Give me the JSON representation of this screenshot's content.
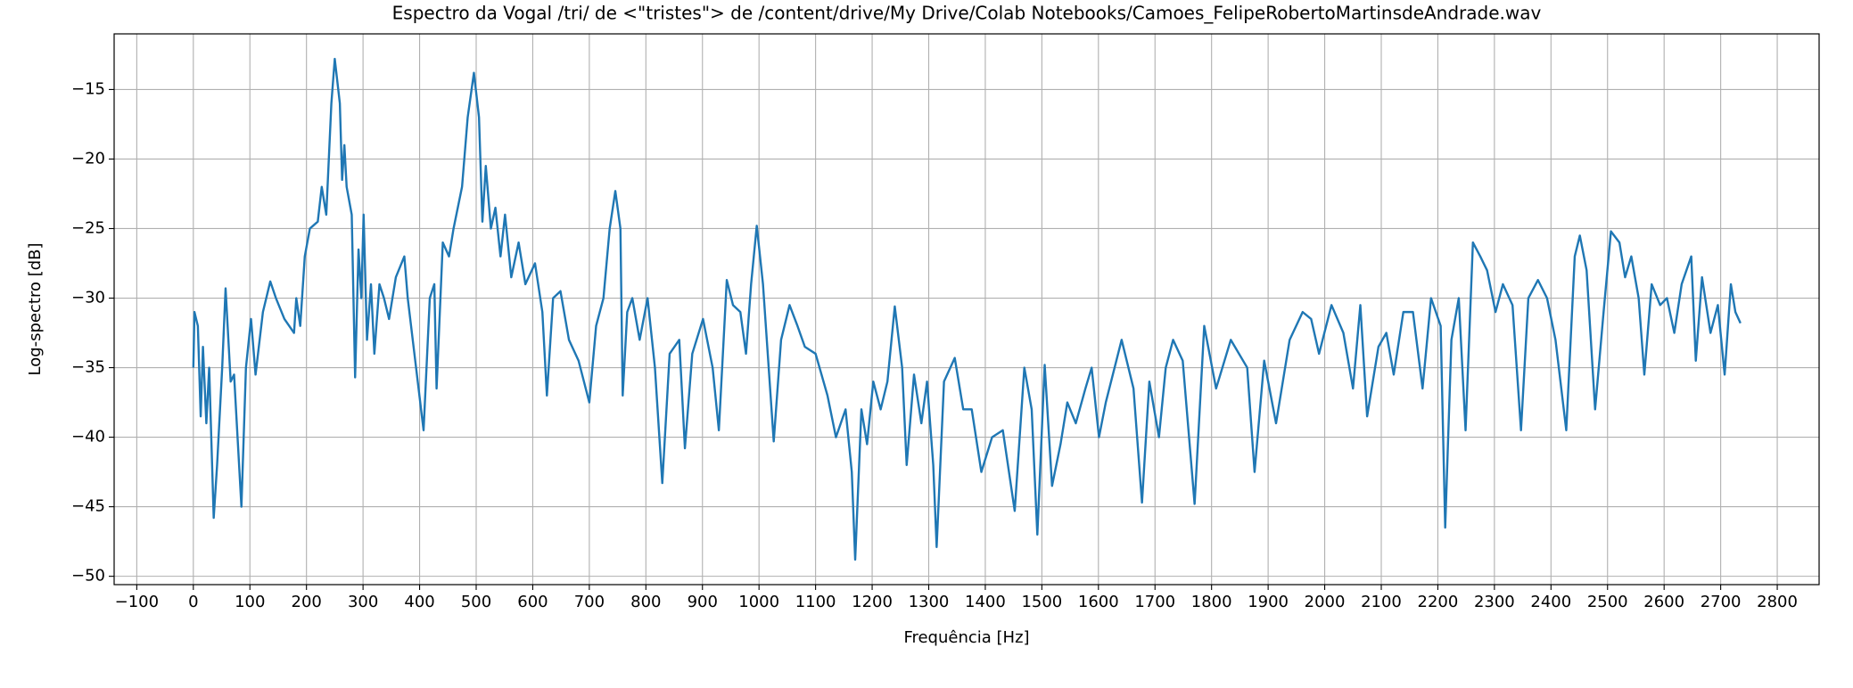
{
  "chart_data": {
    "type": "line",
    "title": "Espectro da Vogal /tri/ de <\"tristes\"> de /content/drive/My Drive/Colab Notebooks/Camoes_FelipeRobertoMartinsdeAndrade.wav",
    "x_label": "Frequência [Hz]",
    "y_label": "Log-spectro [dB]",
    "color": "#1f77b4",
    "grid": true,
    "xlim": [
      -140,
      2874
    ],
    "ylim": [
      -50.6,
      -11.0
    ],
    "xticks": [
      {
        "value": -100,
        "label": "−100"
      },
      0,
      100,
      200,
      300,
      400,
      500,
      600,
      700,
      800,
      900,
      1000,
      1100,
      1200,
      1300,
      1400,
      1500,
      1600,
      1700,
      1800,
      1900,
      2000,
      2100,
      2200,
      2300,
      2400,
      2500,
      2600,
      2700,
      2800
    ],
    "yticks": [
      {
        "value": -50,
        "label": "−50"
      },
      {
        "value": -45,
        "label": "−45"
      },
      {
        "value": -40,
        "label": "−40"
      },
      {
        "value": -35,
        "label": "−35"
      },
      {
        "value": -30,
        "label": "−30"
      },
      {
        "value": -25,
        "label": "−25"
      },
      {
        "value": -20,
        "label": "−20"
      },
      {
        "value": -15,
        "label": "−15"
      }
    ],
    "x": [
      0,
      2,
      8,
      13,
      17,
      23,
      28,
      36,
      42,
      51,
      57,
      66,
      72,
      85,
      93,
      102,
      110,
      123,
      136,
      146,
      161,
      178,
      182,
      189,
      197,
      206,
      220,
      227,
      235,
      244,
      250,
      259,
      263,
      267,
      271,
      280,
      286,
      292,
      297,
      301,
      307,
      314,
      320,
      329,
      337,
      346,
      358,
      373,
      379,
      407,
      418,
      426,
      430,
      441,
      452,
      460,
      475,
      485,
      496,
      505,
      511,
      517,
      526,
      534,
      543,
      551,
      562,
      575,
      587,
      604,
      617,
      625,
      636,
      649,
      664,
      681,
      700,
      712,
      725,
      736,
      746,
      755,
      759,
      767,
      776,
      789,
      803,
      816,
      829,
      842,
      859,
      869,
      882,
      901,
      918,
      929,
      943,
      954,
      967,
      977,
      986,
      996,
      1007,
      1026,
      1039,
      1054,
      1068,
      1081,
      1100,
      1121,
      1136,
      1153,
      1164,
      1170,
      1181,
      1191,
      1202,
      1215,
      1227,
      1240,
      1253,
      1261,
      1274,
      1287,
      1297,
      1308,
      1314,
      1327,
      1346,
      1361,
      1376,
      1393,
      1412,
      1431,
      1452,
      1469,
      1482,
      1492,
      1505,
      1518,
      1533,
      1545,
      1560,
      1577,
      1588,
      1601,
      1613,
      1641,
      1662,
      1677,
      1690,
      1707,
      1719,
      1732,
      1749,
      1770,
      1787,
      1808,
      1834,
      1863,
      1876,
      1893,
      1914,
      1938,
      1961,
      1976,
      1990,
      2012,
      2033,
      2050,
      2063,
      2075,
      2095,
      2109,
      2122,
      2139,
      2156,
      2173,
      2188,
      2205,
      2213,
      2224,
      2237,
      2249,
      2262,
      2275,
      2287,
      2302,
      2315,
      2332,
      2347,
      2360,
      2377,
      2393,
      2408,
      2427,
      2442,
      2451,
      2463,
      2478,
      2493,
      2506,
      2521,
      2531,
      2542,
      2555,
      2565,
      2578,
      2593,
      2605,
      2618,
      2631,
      2648,
      2656,
      2667,
      2682,
      2695,
      2707,
      2718,
      2726,
      2735
    ],
    "values": [
      -35,
      -31,
      -32,
      -38.5,
      -33.5,
      -39,
      -35,
      -45.8,
      -42,
      -35,
      -29.3,
      -36,
      -35.5,
      -45,
      -35,
      -31.5,
      -35.5,
      -31,
      -28.8,
      -30,
      -31.5,
      -32.5,
      -30,
      -32,
      -27,
      -25,
      -24.5,
      -22,
      -24,
      -16,
      -12.8,
      -16,
      -21.5,
      -19,
      -22,
      -24,
      -35.7,
      -26.5,
      -30,
      -24,
      -33,
      -29,
      -34,
      -29,
      -30,
      -31.5,
      -28.5,
      -27,
      -30,
      -39.5,
      -30,
      -29,
      -36.5,
      -26,
      -27,
      -25,
      -22,
      -17,
      -13.8,
      -17,
      -24.5,
      -20.5,
      -25,
      -23.5,
      -27,
      -24,
      -28.5,
      -26,
      -29,
      -27.5,
      -31,
      -37,
      -30,
      -29.5,
      -33,
      -34.5,
      -37.5,
      -32,
      -30,
      -25,
      -22.3,
      -25,
      -37,
      -31,
      -30,
      -33,
      -30,
      -35,
      -43.3,
      -34,
      -33,
      -40.8,
      -34,
      -31.5,
      -35,
      -39.5,
      -28.7,
      -30.5,
      -31,
      -34,
      -29,
      -24.8,
      -29,
      -40.3,
      -33,
      -30.5,
      -32,
      -33.5,
      -34,
      -37,
      -40,
      -38,
      -42.5,
      -48.8,
      -38,
      -40.5,
      -36,
      -38,
      -36,
      -30.6,
      -35,
      -42,
      -35.5,
      -39,
      -36,
      -42,
      -47.9,
      -36,
      -34.3,
      -38,
      -38,
      -42.5,
      -40,
      -39.5,
      -45.3,
      -35,
      -38,
      -47,
      -34.8,
      -43.5,
      -40.5,
      -37.5,
      -39,
      -36.5,
      -35,
      -40,
      -37.5,
      -33,
      -36.5,
      -44.7,
      -36,
      -40,
      -35,
      -33,
      -34.5,
      -44.8,
      -32,
      -36.5,
      -33,
      -35,
      -42.5,
      -34.5,
      -39,
      -33,
      -31,
      -31.5,
      -34,
      -30.5,
      -32.5,
      -36.5,
      -30.5,
      -38.5,
      -33.5,
      -32.5,
      -35.5,
      -31,
      -31,
      -36.5,
      -30,
      -32,
      -46.5,
      -33,
      -30,
      -39.5,
      -26,
      -27,
      -28,
      -31,
      -29,
      -30.5,
      -39.5,
      -30,
      -28.7,
      -30,
      -33,
      -39.5,
      -27,
      -25.5,
      -28,
      -38,
      -31,
      -25.2,
      -26,
      -28.5,
      -27,
      -30,
      -35.5,
      -29,
      -30.5,
      -30,
      -32.5,
      -29,
      -27,
      -34.5,
      -28.5,
      -32.5,
      -30.5,
      -35.5,
      -29,
      -31,
      -31.8
    ]
  }
}
